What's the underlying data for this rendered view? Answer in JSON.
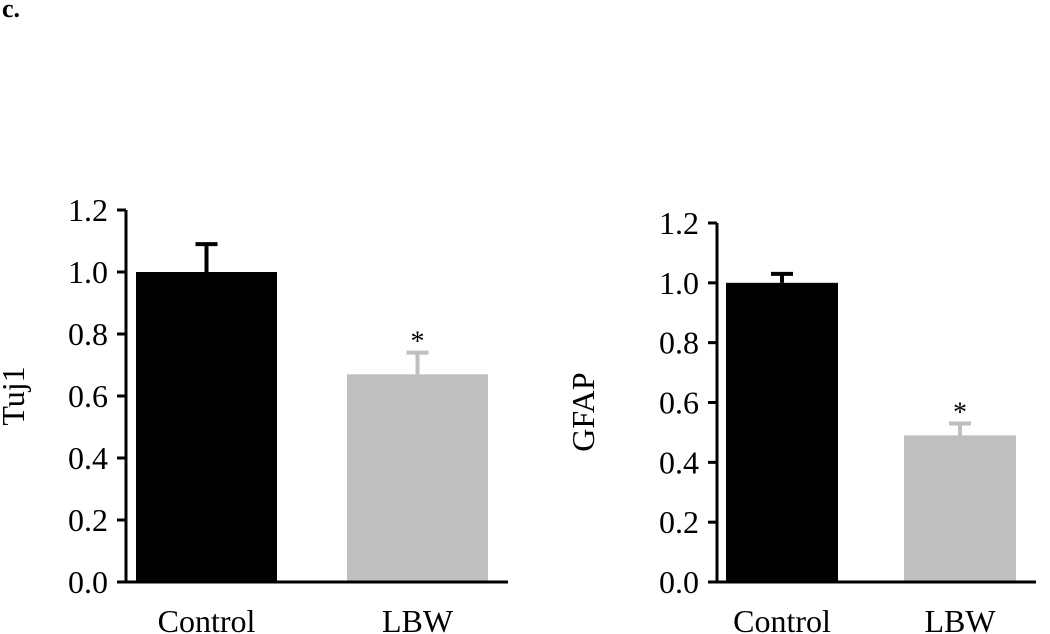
{
  "panel_label": "c.",
  "colors": {
    "control": "#000000",
    "lbw": "#bfbfbf",
    "axis": "#000000"
  },
  "chart_data": [
    {
      "type": "bar",
      "categories": [
        "Control",
        "LBW"
      ],
      "values": [
        1.0,
        0.67
      ],
      "errors": [
        0.09,
        0.07
      ],
      "annotations": [
        "",
        "*"
      ],
      "ylabel": "Tuj1",
      "xlabel": "",
      "ylim": [
        0,
        1.2
      ],
      "yticks": [
        "0.0",
        "0.2",
        "0.4",
        "0.6",
        "0.8",
        "1.0",
        "1.2"
      ],
      "grid": false
    },
    {
      "type": "bar",
      "categories": [
        "Control",
        "LBW"
      ],
      "values": [
        1.0,
        0.49
      ],
      "errors": [
        0.03,
        0.04
      ],
      "annotations": [
        "",
        "*"
      ],
      "ylabel": "GFAP",
      "xlabel": "",
      "ylim": [
        0,
        1.2
      ],
      "yticks": [
        "0.0",
        "0.2",
        "0.4",
        "0.6",
        "0.8",
        "1.0",
        "1.2"
      ],
      "grid": false
    }
  ]
}
